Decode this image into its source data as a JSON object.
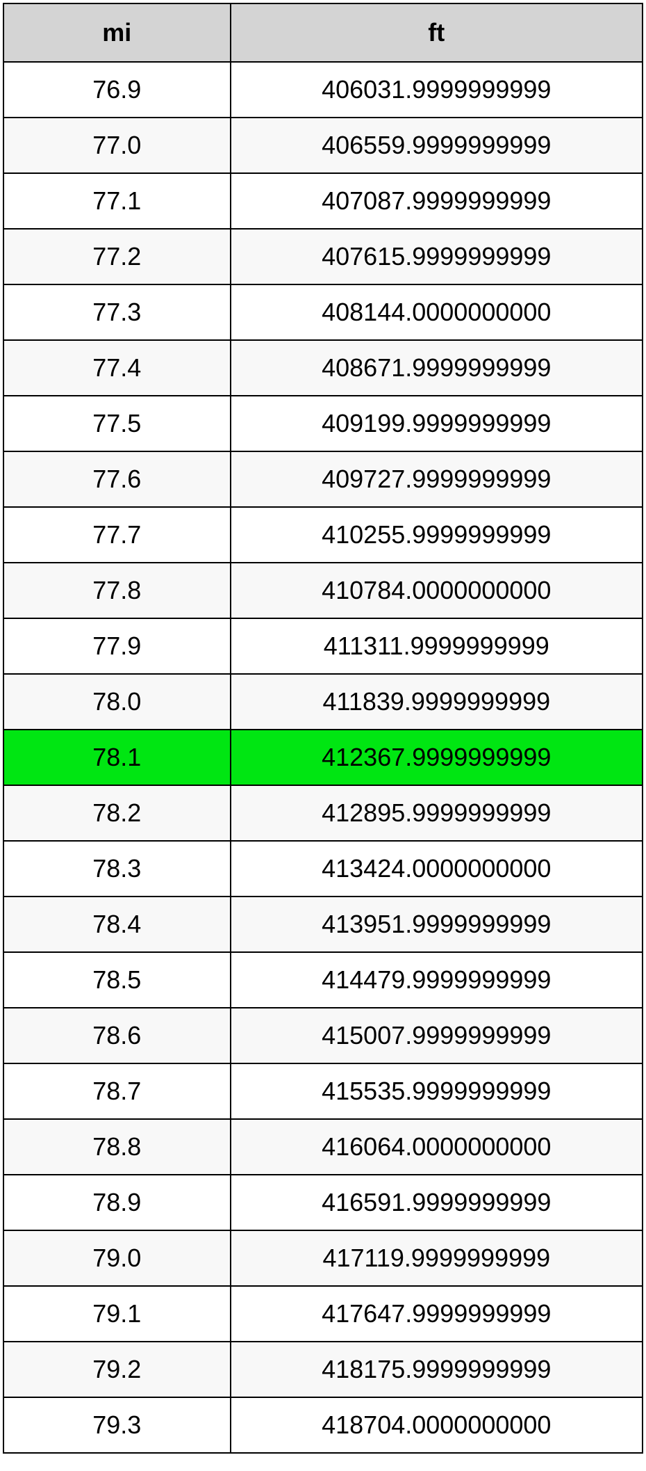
{
  "table": {
    "columns": [
      {
        "key": "mi",
        "label": "mi",
        "width_pct": 35.5
      },
      {
        "key": "ft",
        "label": "ft",
        "width_pct": 64.5
      }
    ],
    "header_bg": "#d4d4d4",
    "row_even_bg": "#ffffff",
    "row_odd_bg": "#f8f8f8",
    "highlight_bg": "#00e612",
    "border_color": "#000000",
    "border_width": 2,
    "font_size": 36,
    "text_color": "#000000",
    "highlighted_row_index": 12,
    "rows": [
      {
        "mi": "76.9",
        "ft": "406031.9999999999"
      },
      {
        "mi": "77.0",
        "ft": "406559.9999999999"
      },
      {
        "mi": "77.1",
        "ft": "407087.9999999999"
      },
      {
        "mi": "77.2",
        "ft": "407615.9999999999"
      },
      {
        "mi": "77.3",
        "ft": "408144.0000000000"
      },
      {
        "mi": "77.4",
        "ft": "408671.9999999999"
      },
      {
        "mi": "77.5",
        "ft": "409199.9999999999"
      },
      {
        "mi": "77.6",
        "ft": "409727.9999999999"
      },
      {
        "mi": "77.7",
        "ft": "410255.9999999999"
      },
      {
        "mi": "77.8",
        "ft": "410784.0000000000"
      },
      {
        "mi": "77.9",
        "ft": "411311.9999999999"
      },
      {
        "mi": "78.0",
        "ft": "411839.9999999999"
      },
      {
        "mi": "78.1",
        "ft": "412367.9999999999"
      },
      {
        "mi": "78.2",
        "ft": "412895.9999999999"
      },
      {
        "mi": "78.3",
        "ft": "413424.0000000000"
      },
      {
        "mi": "78.4",
        "ft": "413951.9999999999"
      },
      {
        "mi": "78.5",
        "ft": "414479.9999999999"
      },
      {
        "mi": "78.6",
        "ft": "415007.9999999999"
      },
      {
        "mi": "78.7",
        "ft": "415535.9999999999"
      },
      {
        "mi": "78.8",
        "ft": "416064.0000000000"
      },
      {
        "mi": "78.9",
        "ft": "416591.9999999999"
      },
      {
        "mi": "79.0",
        "ft": "417119.9999999999"
      },
      {
        "mi": "79.1",
        "ft": "417647.9999999999"
      },
      {
        "mi": "79.2",
        "ft": "418175.9999999999"
      },
      {
        "mi": "79.3",
        "ft": "418704.0000000000"
      }
    ]
  }
}
